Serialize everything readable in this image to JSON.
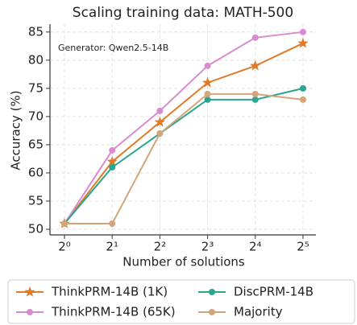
{
  "chart_data": {
    "type": "line",
    "title": "Scaling training data: MATH-500",
    "annotation": "Generator: Qwen2.5-14B",
    "x_label": "Number of solutions",
    "y_label": "Accuracy (%)",
    "x": [
      1,
      2,
      4,
      8,
      16,
      32
    ],
    "xscale": "log2",
    "xlim": [
      0.81,
      38.6
    ],
    "xticks": [
      {
        "value": 1,
        "label": "2⁰"
      },
      {
        "value": 2,
        "label": "2¹"
      },
      {
        "value": 4,
        "label": "2²"
      },
      {
        "value": 8,
        "label": "2³"
      },
      {
        "value": 16,
        "label": "2⁴"
      },
      {
        "value": 32,
        "label": "2⁵"
      }
    ],
    "ylim": [
      49,
      86.4
    ],
    "yticks": [
      50,
      55,
      60,
      65,
      70,
      75,
      80,
      85
    ],
    "grid": true,
    "legend": "bottom",
    "series": [
      {
        "name": "ThinkPRM-14B (1K)",
        "color": "#e07b28",
        "marker": "star",
        "values": [
          51,
          62,
          69,
          76,
          79,
          83
        ]
      },
      {
        "name": "ThinkPRM-14B (65K)",
        "color": "#d98bd0",
        "marker": "circle",
        "values": [
          51,
          64,
          71,
          79,
          84,
          85
        ]
      },
      {
        "name": "DiscPRM-14B",
        "color": "#2ca58d",
        "marker": "circle",
        "values": [
          51,
          61,
          67,
          73,
          73,
          75
        ]
      },
      {
        "name": "Majority",
        "color": "#d4a57a",
        "marker": "circle",
        "values": [
          51,
          51,
          67,
          74,
          74,
          73
        ]
      }
    ]
  }
}
